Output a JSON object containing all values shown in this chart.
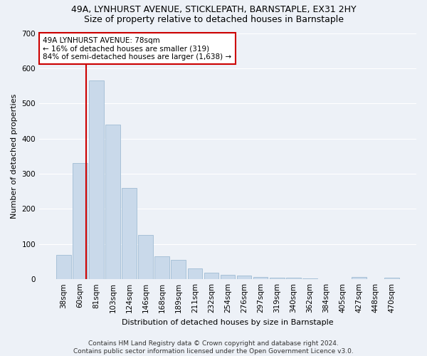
{
  "title": "49A, LYNHURST AVENUE, STICKLEPATH, BARNSTAPLE, EX31 2HY",
  "subtitle": "Size of property relative to detached houses in Barnstaple",
  "xlabel": "Distribution of detached houses by size in Barnstaple",
  "ylabel": "Number of detached properties",
  "categories": [
    "38sqm",
    "60sqm",
    "81sqm",
    "103sqm",
    "124sqm",
    "146sqm",
    "168sqm",
    "189sqm",
    "211sqm",
    "232sqm",
    "254sqm",
    "276sqm",
    "297sqm",
    "319sqm",
    "340sqm",
    "362sqm",
    "384sqm",
    "405sqm",
    "427sqm",
    "448sqm",
    "470sqm"
  ],
  "values": [
    70,
    330,
    565,
    440,
    260,
    125,
    65,
    55,
    30,
    18,
    13,
    10,
    7,
    5,
    5,
    3,
    0,
    0,
    7,
    0,
    5
  ],
  "bar_color": "#c9d9ea",
  "bar_edge_color": "#a0bcd4",
  "highlight_line_color": "#cc0000",
  "annotation_box_color": "#cc0000",
  "annotation_text": "49A LYNHURST AVENUE: 78sqm\n← 16% of detached houses are smaller (319)\n84% of semi-detached houses are larger (1,638) →",
  "footer": "Contains HM Land Registry data © Crown copyright and database right 2024.\nContains public sector information licensed under the Open Government Licence v3.0.",
  "ylim": [
    0,
    700
  ],
  "yticks": [
    0,
    100,
    200,
    300,
    400,
    500,
    600,
    700
  ],
  "bg_color": "#edf1f7",
  "plot_bg_color": "#edf1f7",
  "grid_color": "#ffffff",
  "title_fontsize": 9,
  "subtitle_fontsize": 9,
  "label_fontsize": 8,
  "tick_fontsize": 7.5,
  "annotation_fontsize": 7.5,
  "footer_fontsize": 6.5
}
